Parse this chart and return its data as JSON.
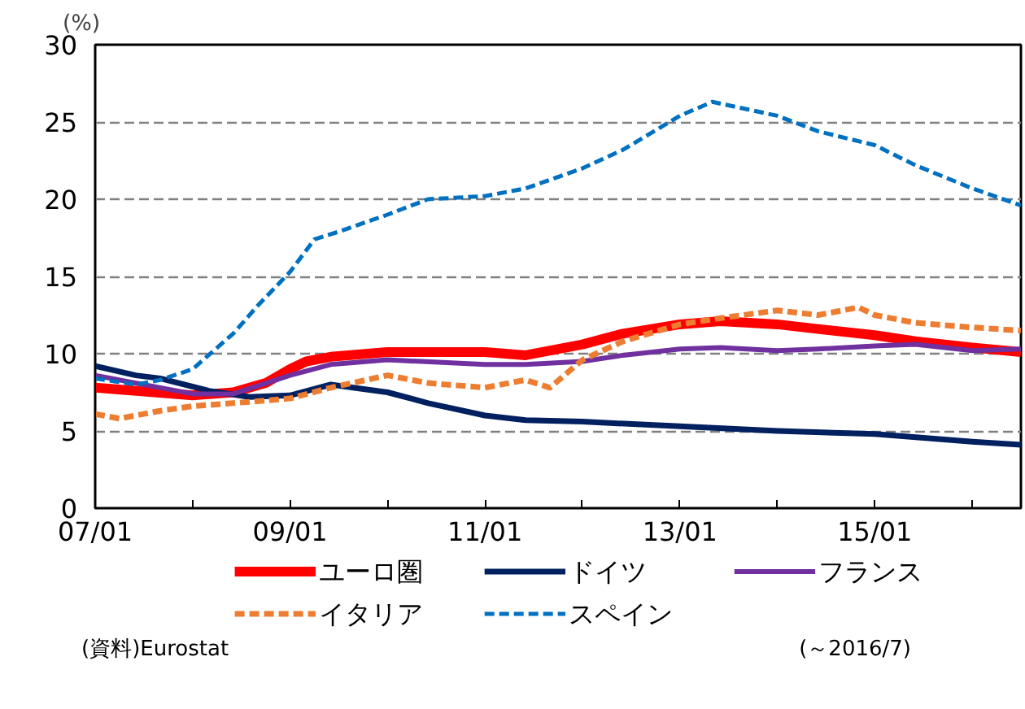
{
  "chart_data": {
    "type": "line",
    "ylabel": "(%)",
    "xlim": [
      "2007-01",
      "2016-07"
    ],
    "ylim": [
      0,
      30
    ],
    "yticks": [
      0,
      5,
      10,
      15,
      20,
      25,
      30
    ],
    "xticks": [
      {
        "value": "2007-01",
        "label": "07/01"
      },
      {
        "value": "2008-01",
        "label": null
      },
      {
        "value": "2009-01",
        "label": "09/01"
      },
      {
        "value": "2010-01",
        "label": null
      },
      {
        "value": "2011-01",
        "label": "11/01"
      },
      {
        "value": "2012-01",
        "label": null
      },
      {
        "value": "2013-01",
        "label": "13/01"
      },
      {
        "value": "2014-01",
        "label": null
      },
      {
        "value": "2015-01",
        "label": "15/01"
      },
      {
        "value": "2016-01",
        "label": null
      }
    ],
    "grid": "y",
    "legend": "bottom",
    "annotations": [
      "(資料)Eurostat",
      "(～2016/7)"
    ],
    "series": [
      {
        "name": "ユーロ圏",
        "color": "#ff0000",
        "line_style": "solid",
        "x": [
          "2007-01",
          "2008-01",
          "2008-06",
          "2008-10",
          "2009-01",
          "2009-03",
          "2009-06",
          "2010-01",
          "2011-01",
          "2011-06",
          "2012-01",
          "2012-06",
          "2013-01",
          "2013-06",
          "2014-01",
          "2014-06",
          "2015-01",
          "2015-06",
          "2016-01",
          "2016-07"
        ],
        "values": [
          7.8,
          7.3,
          7.5,
          8.1,
          9.0,
          9.5,
          9.8,
          10.1,
          10.1,
          9.9,
          10.6,
          11.3,
          11.9,
          12.1,
          11.9,
          11.6,
          11.2,
          10.8,
          10.4,
          10.1
        ]
      },
      {
        "name": "ドイツ",
        "color": "#002060",
        "line_style": "solid",
        "x": [
          "2007-01",
          "2007-06",
          "2007-09",
          "2008-03",
          "2008-08",
          "2009-01",
          "2009-06",
          "2010-01",
          "2010-06",
          "2011-01",
          "2011-06",
          "2012-01",
          "2013-01",
          "2014-01",
          "2015-01",
          "2016-01",
          "2016-07"
        ],
        "values": [
          9.2,
          8.6,
          8.4,
          7.6,
          7.2,
          7.3,
          8.0,
          7.5,
          6.8,
          6.0,
          5.7,
          5.6,
          5.3,
          5.0,
          4.8,
          4.3,
          4.1
        ]
      },
      {
        "name": "フランス",
        "color": "#7030a0",
        "line_style": "solid",
        "x": [
          "2007-01",
          "2008-01",
          "2008-06",
          "2009-01",
          "2009-06",
          "2010-01",
          "2011-01",
          "2011-06",
          "2012-01",
          "2012-06",
          "2013-01",
          "2013-06",
          "2014-01",
          "2014-06",
          "2015-01",
          "2015-06",
          "2016-01",
          "2016-07"
        ],
        "values": [
          8.6,
          7.4,
          7.4,
          8.6,
          9.3,
          9.6,
          9.3,
          9.3,
          9.5,
          9.9,
          10.3,
          10.4,
          10.2,
          10.3,
          10.5,
          10.6,
          10.2,
          10.3
        ]
      },
      {
        "name": "イタリア",
        "color": "#ed7d31",
        "line_style": "dashed",
        "x": [
          "2007-01",
          "2007-04",
          "2007-09",
          "2008-01",
          "2008-06",
          "2009-01",
          "2009-06",
          "2010-01",
          "2010-06",
          "2011-01",
          "2011-06",
          "2011-09",
          "2012-01",
          "2012-06",
          "2013-01",
          "2013-06",
          "2014-01",
          "2014-06",
          "2014-11",
          "2015-01",
          "2015-06",
          "2016-01",
          "2016-07"
        ],
        "values": [
          6.1,
          5.8,
          6.3,
          6.6,
          6.8,
          7.1,
          7.8,
          8.6,
          8.1,
          7.8,
          8.3,
          7.8,
          9.6,
          10.8,
          11.9,
          12.3,
          12.8,
          12.5,
          13.0,
          12.5,
          12.0,
          11.7,
          11.5
        ]
      },
      {
        "name": "スペイン",
        "color": "#0070c0",
        "line_style": "dashed",
        "x": [
          "2007-01",
          "2007-06",
          "2007-09",
          "2008-01",
          "2008-06",
          "2008-09",
          "2009-01",
          "2009-04",
          "2009-07",
          "2010-01",
          "2010-06",
          "2011-01",
          "2011-06",
          "2012-01",
          "2012-06",
          "2013-01",
          "2013-05",
          "2014-01",
          "2014-06",
          "2015-01",
          "2015-06",
          "2016-01",
          "2016-07"
        ],
        "values": [
          8.4,
          8.0,
          8.3,
          9.0,
          11.3,
          13.1,
          15.3,
          17.4,
          17.9,
          19.0,
          20.0,
          20.2,
          20.7,
          22.0,
          23.2,
          25.4,
          26.3,
          25.4,
          24.4,
          23.5,
          22.2,
          20.7,
          19.6
        ]
      }
    ]
  }
}
